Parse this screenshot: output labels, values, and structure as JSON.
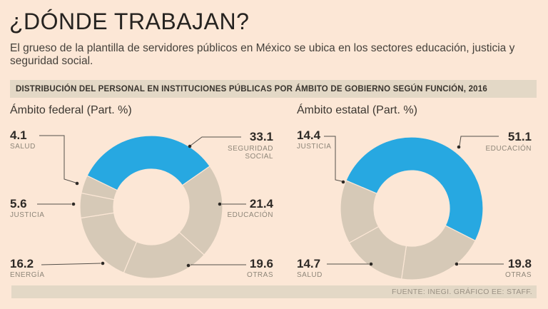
{
  "title": "¿DÓNDE TRABAJAN?",
  "subtitle": "El grueso de la plantilla de servidores públicos en México se ubica en los sectores educación, justicia y seguridad social.",
  "header_bar": "DISTRIBUCIÓN DEL PERSONAL EN INSTITUCIONES PÚBLICAS POR ÁMBITO DE GOBIERNO SEGÚN FUNCIÓN, 2016",
  "source": "FUENTE: INEGI. GRÁFICO EE: STAFF.",
  "colors": {
    "background": "#fce7d6",
    "bar": "#e3d8c6",
    "highlight": "#27a8e1",
    "segment": "#d6c9b7",
    "number_text": "#2e2a26",
    "category_text": "#8e8679"
  },
  "chart_data": [
    {
      "type": "pie",
      "style": "donut",
      "title": "Ámbito federal (Part. %)",
      "units": "Part. %",
      "start_angle_deg": -64,
      "segments": [
        {
          "label": "SEGURIDAD SOCIAL",
          "value": 33.1,
          "highlight": true
        },
        {
          "label": "EDUCACIÓN",
          "value": 21.4,
          "highlight": false
        },
        {
          "label": "OTRAS",
          "value": 19.6,
          "highlight": false
        },
        {
          "label": "ENERGÍA",
          "value": 16.2,
          "highlight": false
        },
        {
          "label": "JUSTICIA",
          "value": 5.6,
          "highlight": false
        },
        {
          "label": "SALUD",
          "value": 4.1,
          "highlight": false
        }
      ]
    },
    {
      "type": "pie",
      "style": "donut",
      "title": "Ámbito estatal (Part. %)",
      "units": "Part. %",
      "start_angle_deg": -67,
      "segments": [
        {
          "label": "EDUCACIÓN",
          "value": 51.1,
          "highlight": true
        },
        {
          "label": "OTRAS",
          "value": 19.8,
          "highlight": false
        },
        {
          "label": "SALUD",
          "value": 14.7,
          "highlight": false
        },
        {
          "label": "JUSTICIA",
          "value": 14.4,
          "highlight": false
        }
      ]
    }
  ]
}
